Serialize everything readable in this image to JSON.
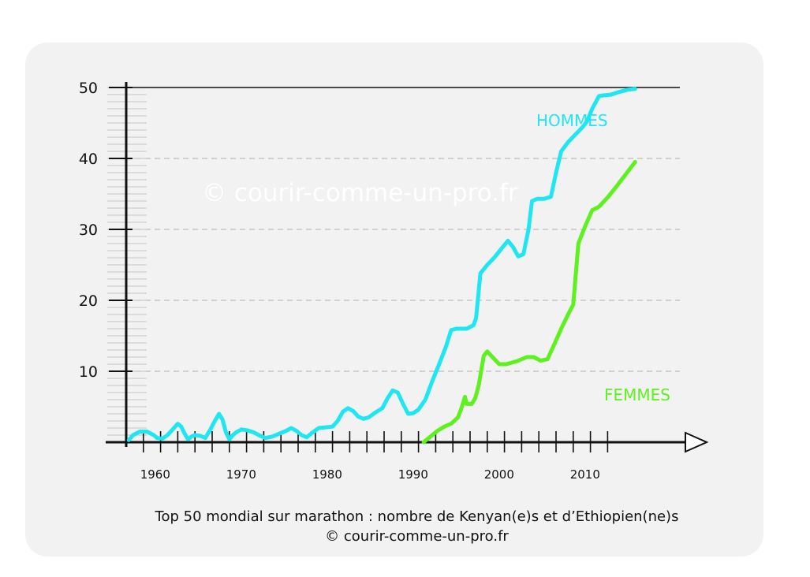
{
  "caption": {
    "line1": "Top 50 mondial sur marathon : nombre de Kenyan(e)s et d’Ethiopien(ne)s",
    "line2": "© courir-comme-un-pro.fr"
  },
  "watermark": "© courir-comme-un-pro.fr",
  "colors": {
    "hommes": "#1fe6f0",
    "femmes": "#5ef01f",
    "axis": "#111111",
    "grid": "#bdbdbd",
    "card": "#f2f2f2",
    "watermark": "#ffffff"
  },
  "chart_data": {
    "type": "line",
    "title": "",
    "xlabel": "",
    "ylabel": "",
    "xlim": [
      1958,
      2018
    ],
    "ylim": [
      0,
      50
    ],
    "x_ticks": [
      1960,
      1970,
      1980,
      1990,
      2000,
      2010
    ],
    "y_ticks": [
      10,
      20,
      30,
      40,
      50
    ],
    "grid": true,
    "series": [
      {
        "name": "HOMMES",
        "color": "#1fe6f0",
        "x": [
          1958.3,
          1958.8,
          1959.6,
          1960.4,
          1961.2,
          1961.6,
          1962.2,
          1962.8,
          1963.4,
          1964.0,
          1964.4,
          1964.8,
          1965.2,
          1965.6,
          1966.0,
          1966.6,
          1967.2,
          1967.8,
          1968.3,
          1968.8,
          1969.2,
          1969.6,
          1970.0,
          1970.4,
          1970.8,
          1971.4,
          1972.0,
          1972.8,
          1973.6,
          1974.2,
          1975.0,
          1975.8,
          1976.6,
          1977.2,
          1977.8,
          1978.4,
          1979.0,
          1979.6,
          1980.4,
          1981.2,
          1982.0,
          1982.6,
          1983.2,
          1983.8,
          1984.4,
          1985.0,
          1985.6,
          1986.2,
          1987.0,
          1987.8,
          1988.4,
          1989.0,
          1989.6,
          1990.2,
          1990.8,
          1991.4,
          1992.0,
          1992.8,
          1993.6,
          1994.4,
          1995.2,
          1995.8,
          1996.4,
          1997.0,
          1997.6,
          1998.4,
          1998.7,
          1999.2,
          2000.0,
          2000.8,
          2001.6,
          2002.4,
          2003.0,
          2003.6,
          2004.2,
          2004.8,
          2005.2,
          2005.8,
          2006.6,
          2007.4,
          2008.0,
          2008.6,
          2009.4,
          2010.2,
          2011.0,
          2011.6,
          2012.2,
          2013.0,
          2013.6,
          2014.4,
          2015.4,
          2016.4,
          2017.2
        ],
        "values": [
          0.3,
          1.0,
          1.5,
          1.5,
          1.0,
          0.6,
          0.5,
          1.0,
          1.8,
          2.6,
          2.2,
          1.2,
          0.4,
          0.8,
          1.0,
          0.9,
          0.6,
          1.8,
          3.0,
          4.0,
          3.2,
          1.4,
          0.4,
          1.0,
          1.4,
          1.8,
          1.7,
          1.4,
          0.9,
          0.6,
          0.8,
          1.2,
          1.6,
          2.0,
          1.6,
          1.0,
          0.7,
          1.3,
          2.0,
          2.1,
          2.2,
          3.0,
          4.3,
          4.8,
          4.4,
          3.6,
          3.3,
          3.5,
          4.2,
          4.8,
          6.2,
          7.3,
          7.0,
          5.4,
          4.0,
          4.1,
          4.6,
          6.0,
          8.6,
          11.0,
          13.5,
          15.8,
          16.0,
          16.0,
          16.0,
          16.5,
          17.5,
          23.8,
          25.0,
          26.0,
          27.2,
          28.4,
          27.5,
          26.2,
          26.5,
          30.0,
          34.0,
          34.3,
          34.3,
          34.6,
          38.0,
          41.0,
          42.3,
          43.3,
          44.3,
          45.2,
          47.0,
          48.8,
          48.9,
          49.0,
          49.4,
          49.7,
          49.8
        ]
      },
      {
        "name": "FEMMES",
        "color": "#5ef01f",
        "x": [
          1992.6,
          1993.4,
          1994.2,
          1995.0,
          1995.8,
          1996.6,
          1997.0,
          1997.4,
          1997.6,
          1998.2,
          1998.6,
          1999.0,
          1999.6,
          2000.0,
          2000.6,
          2001.4,
          2002.2,
          2003.4,
          2004.6,
          2005.4,
          2006.2,
          2007.0,
          2007.8,
          2008.6,
          2009.4,
          2010.0,
          2010.6,
          2011.4,
          2012.2,
          2013.0,
          2014.0,
          2015.0,
          2016.0,
          2017.2
        ],
        "values": [
          0.0,
          0.8,
          1.6,
          2.2,
          2.6,
          3.5,
          4.8,
          6.4,
          5.4,
          5.4,
          6.2,
          8.0,
          12.2,
          12.8,
          12.0,
          11.0,
          11.0,
          11.4,
          12.0,
          12.0,
          11.5,
          11.7,
          13.8,
          16.0,
          18.0,
          19.4,
          28.0,
          30.5,
          32.7,
          33.2,
          34.5,
          36.0,
          37.6,
          39.5
        ]
      }
    ]
  }
}
